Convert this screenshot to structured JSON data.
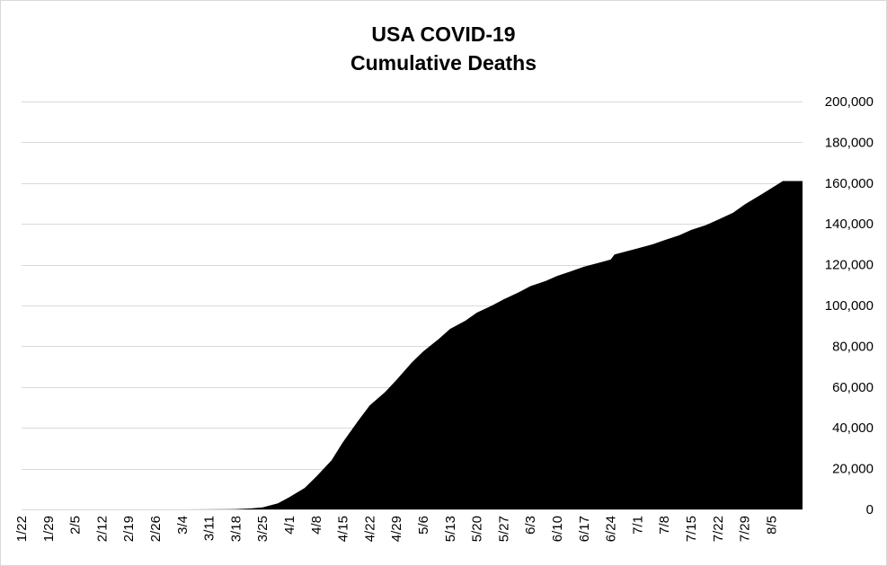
{
  "chart_data": {
    "type": "area",
    "title_lines": [
      "USA COVID-19",
      "Cumulative Deaths"
    ],
    "xlabel": "",
    "ylabel": "",
    "ylim": [
      0,
      200000
    ],
    "y_ticks": [
      0,
      20000,
      40000,
      60000,
      80000,
      100000,
      120000,
      140000,
      160000,
      180000,
      200000
    ],
    "y_tick_labels": [
      "0",
      "20,000",
      "40,000",
      "60,000",
      "80,000",
      "100,000",
      "120,000",
      "140,000",
      "160,000",
      "180,000",
      "200,000"
    ],
    "x_tick_labels": [
      "1/22",
      "1/29",
      "2/5",
      "2/12",
      "2/19",
      "2/26",
      "3/4",
      "3/11",
      "3/18",
      "3/25",
      "4/1",
      "4/8",
      "4/15",
      "4/22",
      "4/29",
      "5/6",
      "5/13",
      "5/20",
      "5/27",
      "6/3",
      "6/10",
      "6/17",
      "6/24",
      "7/1",
      "7/8",
      "7/15",
      "7/22",
      "7/29",
      "8/5"
    ],
    "grid": true,
    "legend": "none",
    "fill_color": "#000000",
    "gridline_color": "#d9d9d9",
    "series": [
      {
        "x": [
          "1/22",
          "1/29",
          "2/5",
          "2/12",
          "2/19",
          "2/26",
          "3/4",
          "3/11",
          "3/18",
          "3/22",
          "3/25",
          "3/29",
          "4/1",
          "4/5",
          "4/8",
          "4/12",
          "4/15",
          "4/19",
          "4/22",
          "4/26",
          "4/29",
          "5/3",
          "5/6",
          "5/10",
          "5/13",
          "5/17",
          "5/20",
          "5/24",
          "5/27",
          "5/31",
          "6/3",
          "6/7",
          "6/10",
          "6/14",
          "6/17",
          "6/21",
          "6/24",
          "6/25",
          "6/28",
          "7/1",
          "7/5",
          "7/8",
          "7/12",
          "7/15",
          "7/19",
          "7/22",
          "7/26",
          "7/29",
          "8/2",
          "8/5",
          "8/8"
        ],
        "values": [
          0,
          0,
          0,
          0,
          0,
          0,
          10,
          40,
          150,
          500,
          1000,
          3000,
          6000,
          10500,
          16000,
          24000,
          33000,
          43500,
          51000,
          57500,
          63500,
          72000,
          77500,
          83500,
          88500,
          92500,
          96500,
          100000,
          103000,
          106500,
          109500,
          112000,
          114500,
          117000,
          119000,
          121000,
          122500,
          125000,
          126500,
          128000,
          130000,
          132000,
          134500,
          137000,
          139500,
          142000,
          145500,
          149500,
          154000,
          157500,
          161000
        ]
      }
    ]
  }
}
